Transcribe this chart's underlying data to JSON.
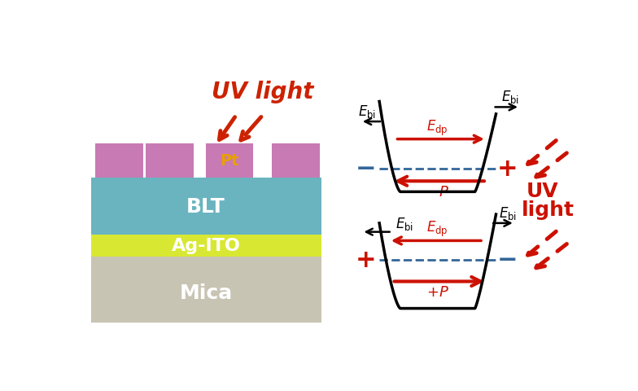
{
  "bg_color": "#ffffff",
  "left_panel": {
    "mica_color": "#c8c4b4",
    "agito_color": "#d8e832",
    "blt_color": "#6ab4c0",
    "pt_color": "#c87ab4",
    "mica_label": "Mica",
    "agito_label": "Ag-ITO",
    "blt_label": "BLT",
    "pt_label": "Pt",
    "uv_label": "UV light",
    "label_white": "#ffffff",
    "label_gold": "#e8a000",
    "label_red": "#cc2200"
  },
  "right_panel": {
    "band_color": "#000000",
    "arrow_red": "#cc1100",
    "dashed_color": "#336699",
    "plus_red": "#cc1100",
    "minus_blue": "#336699",
    "uv_color": "#cc1100"
  }
}
